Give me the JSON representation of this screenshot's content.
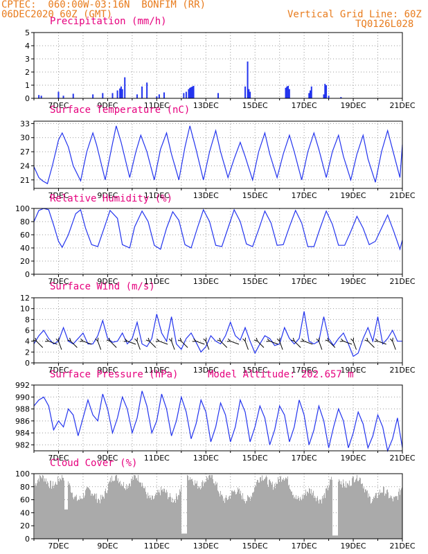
{
  "header": {
    "line1": "CPTEC:  060:00W-03:16N  BONFIM (RR)",
    "line2": "06DEC2020 60Z (GMT)",
    "right1": "Vertical Grid Line: 60Z",
    "right2": "TQ0126L028"
  },
  "x_ticks": [
    "7DEC",
    "9DEC",
    "11DEC",
    "13DEC",
    "15DEC",
    "17DEC",
    "19DEC",
    "21DEC"
  ],
  "colors": {
    "line": "#2233ee",
    "title": "#e6007e",
    "header": "#e87b1c",
    "cloud": "#aaaaaa",
    "arrow": "#000000"
  },
  "chart_data": [
    {
      "type": "bar",
      "name": "precipitation",
      "title": "Precipitation (mm/h)",
      "ylim": [
        0,
        5
      ],
      "yticks": [
        0,
        1,
        2,
        3,
        4,
        5
      ],
      "x": [
        6.2,
        6.3,
        7.0,
        7.2,
        7.6,
        8.4,
        8.8,
        9.2,
        9.4,
        9.5,
        9.55,
        9.6,
        9.7,
        10.2,
        10.4,
        10.6,
        11.0,
        11.1,
        11.3,
        12.1,
        12.2,
        12.3,
        12.35,
        12.4,
        12.45,
        12.5,
        13.5,
        14.6,
        14.7,
        14.75,
        14.8,
        16.25,
        16.3,
        16.35,
        16.4,
        17.2,
        17.25,
        17.3,
        17.8,
        17.85,
        17.9,
        18.0,
        18.5
      ],
      "values": [
        0.25,
        0.2,
        0.5,
        0.2,
        0.35,
        0.3,
        0.4,
        0.4,
        0.6,
        0.75,
        0.9,
        0.7,
        1.6,
        0.3,
        0.9,
        1.2,
        0.15,
        0.3,
        0.45,
        0.4,
        0.5,
        0.7,
        0.8,
        0.85,
        0.9,
        0.95,
        0.4,
        0.9,
        2.8,
        0.7,
        0.5,
        0.8,
        0.9,
        0.95,
        0.7,
        0.4,
        0.6,
        0.9,
        0.3,
        1.1,
        1.0,
        0.2,
        0.1
      ]
    },
    {
      "type": "line",
      "name": "temperature",
      "title": "Surface Temperature (nC)",
      "ylim": [
        19.2,
        33.5
      ],
      "yticks": [
        21,
        24,
        27,
        30,
        33
      ],
      "series": [
        {
          "x": [
            6.0,
            6.2,
            6.35,
            6.55,
            6.75,
            7.0,
            7.15,
            7.4,
            7.6,
            7.9,
            8.15,
            8.4,
            8.55,
            8.9,
            9.15,
            9.35,
            9.55,
            9.9,
            10.15,
            10.35,
            10.6,
            10.9,
            11.15,
            11.4,
            11.6,
            11.9,
            12.15,
            12.35,
            12.6,
            12.9,
            13.15,
            13.4,
            13.6,
            13.9,
            14.15,
            14.4,
            14.6,
            14.9,
            15.15,
            15.4,
            15.6,
            15.9,
            16.15,
            16.4,
            16.6,
            16.9,
            17.15,
            17.4,
            17.6,
            17.9,
            18.15,
            18.4,
            18.6,
            18.9,
            19.15,
            19.4,
            19.6,
            19.9,
            20.15,
            20.4,
            20.6,
            20.9,
            21.0
          ],
          "y": [
            23.8,
            21.5,
            20.8,
            20.2,
            24.0,
            29.5,
            31.0,
            28.0,
            24.0,
            20.8,
            27.0,
            31.0,
            28.5,
            21.0,
            27.5,
            32.5,
            29.0,
            21.5,
            27.0,
            30.5,
            27.0,
            21.0,
            27.5,
            31.0,
            26.5,
            21.0,
            28.0,
            32.5,
            27.5,
            21.0,
            27.0,
            31.5,
            27.0,
            21.5,
            25.5,
            29.0,
            26.0,
            21.0,
            27.0,
            31.0,
            26.5,
            21.5,
            26.5,
            30.5,
            27.0,
            21.0,
            27.0,
            31.0,
            27.5,
            21.5,
            27.0,
            30.5,
            26.0,
            21.0,
            26.5,
            30.5,
            25.5,
            20.5,
            27.0,
            31.5,
            27.5,
            21.5,
            28.5
          ]
        }
      ]
    },
    {
      "type": "line",
      "name": "humidity",
      "title": "Relative Humidity (%)",
      "ylim": [
        0,
        100
      ],
      "yticks": [
        0,
        20,
        40,
        60,
        80,
        100
      ],
      "series": [
        {
          "x": [
            6.0,
            6.2,
            6.4,
            6.6,
            6.8,
            7.0,
            7.15,
            7.4,
            7.7,
            7.9,
            8.1,
            8.35,
            8.6,
            8.9,
            9.1,
            9.4,
            9.6,
            9.9,
            10.1,
            10.4,
            10.65,
            10.9,
            11.15,
            11.4,
            11.65,
            11.9,
            12.15,
            12.4,
            12.65,
            12.9,
            13.15,
            13.4,
            13.65,
            13.9,
            14.15,
            14.4,
            14.65,
            14.9,
            15.15,
            15.4,
            15.65,
            15.9,
            16.15,
            16.4,
            16.65,
            16.9,
            17.15,
            17.4,
            17.65,
            17.9,
            18.15,
            18.4,
            18.65,
            18.9,
            19.15,
            19.4,
            19.65,
            19.9,
            20.15,
            20.4,
            20.65,
            20.9,
            21.0
          ],
          "y": [
            80,
            97,
            100,
            98,
            75,
            50,
            41,
            60,
            92,
            98,
            70,
            45,
            42,
            75,
            97,
            85,
            45,
            40,
            72,
            96,
            80,
            44,
            38,
            70,
            95,
            82,
            45,
            40,
            70,
            98,
            80,
            44,
            42,
            70,
            98,
            80,
            46,
            42,
            68,
            96,
            78,
            44,
            45,
            72,
            97,
            78,
            42,
            42,
            70,
            96,
            76,
            44,
            44,
            65,
            88,
            70,
            45,
            50,
            70,
            90,
            65,
            38,
            52
          ]
        }
      ]
    },
    {
      "type": "line",
      "name": "wind",
      "title": "Surface Wind (m/s)",
      "ylim": [
        0,
        12
      ],
      "yticks": [
        0,
        2,
        4,
        6,
        8,
        10,
        12
      ],
      "series": [
        {
          "x": [
            6.0,
            6.2,
            6.4,
            6.6,
            6.8,
            7.0,
            7.2,
            7.4,
            7.6,
            7.8,
            8.0,
            8.2,
            8.4,
            8.6,
            8.8,
            9.0,
            9.2,
            9.4,
            9.6,
            9.8,
            10.0,
            10.2,
            10.4,
            10.6,
            10.8,
            11.0,
            11.2,
            11.4,
            11.6,
            11.8,
            12.0,
            12.2,
            12.4,
            12.6,
            12.8,
            13.0,
            13.2,
            13.4,
            13.6,
            13.8,
            14.0,
            14.2,
            14.4,
            14.6,
            14.8,
            15.0,
            15.2,
            15.4,
            15.6,
            15.8,
            16.0,
            16.2,
            16.4,
            16.6,
            16.8,
            17.0,
            17.2,
            17.4,
            17.6,
            17.8,
            18.0,
            18.2,
            18.4,
            18.6,
            18.8,
            19.0,
            19.2,
            19.4,
            19.6,
            19.8,
            20.0,
            20.2,
            20.4,
            20.6,
            20.8,
            21.0
          ],
          "y": [
            3.5,
            5.0,
            6.0,
            4.5,
            3.5,
            4.0,
            6.5,
            4.0,
            3.5,
            4.5,
            5.5,
            3.5,
            3.5,
            5.0,
            7.8,
            4.5,
            3.8,
            4.0,
            5.5,
            3.5,
            4.5,
            7.5,
            3.5,
            3.0,
            4.5,
            9.0,
            5.5,
            4.0,
            8.5,
            3.5,
            2.5,
            4.5,
            5.5,
            3.8,
            2.0,
            3.0,
            5.0,
            4.0,
            3.5,
            5.0,
            7.5,
            5.0,
            4.2,
            6.5,
            4.0,
            1.8,
            3.5,
            5.0,
            4.5,
            3.2,
            3.5,
            6.5,
            4.5,
            3.5,
            4.5,
            9.5,
            4.0,
            3.5,
            4.0,
            8.5,
            4.5,
            3.2,
            4.5,
            5.5,
            3.5,
            1.2,
            1.8,
            4.5,
            6.5,
            4.0,
            8.5,
            3.5,
            4.5,
            6.0,
            4.0,
            4.0
          ]
        }
      ],
      "barbs": [
        6.1,
        6.6,
        7.0,
        7.5,
        8.0,
        8.6,
        9.1,
        9.8,
        10.2,
        10.7,
        11.1,
        11.6,
        12.0,
        12.6,
        13.0,
        13.6,
        14.0,
        14.6,
        15.1,
        15.6,
        16.0,
        16.6,
        17.0,
        17.6,
        18.0,
        18.6,
        19.0,
        19.6,
        20.0,
        20.6
      ]
    },
    {
      "type": "line",
      "name": "pressure",
      "title": "Surface Pressure (hPa)",
      "annotation": "Model Altitude: 202.657  m",
      "ylim": [
        981,
        992
      ],
      "yticks": [
        982,
        984,
        986,
        988,
        990,
        992
      ],
      "series": [
        {
          "x": [
            6.0,
            6.2,
            6.4,
            6.6,
            6.8,
            7.0,
            7.2,
            7.4,
            7.6,
            7.8,
            8.0,
            8.2,
            8.4,
            8.6,
            8.8,
            9.0,
            9.2,
            9.4,
            9.6,
            9.8,
            10.0,
            10.2,
            10.4,
            10.6,
            10.8,
            11.0,
            11.2,
            11.4,
            11.6,
            11.8,
            12.0,
            12.2,
            12.4,
            12.6,
            12.8,
            13.0,
            13.2,
            13.4,
            13.6,
            13.8,
            14.0,
            14.2,
            14.4,
            14.6,
            14.8,
            15.0,
            15.2,
            15.4,
            15.6,
            15.8,
            16.0,
            16.2,
            16.4,
            16.6,
            16.8,
            17.0,
            17.2,
            17.4,
            17.6,
            17.8,
            18.0,
            18.2,
            18.4,
            18.6,
            18.8,
            19.0,
            19.2,
            19.4,
            19.6,
            19.8,
            20.0,
            20.2,
            20.4,
            20.6,
            20.8,
            21.0
          ],
          "y": [
            988.5,
            989.5,
            990.0,
            988.5,
            984.5,
            986.0,
            985.0,
            988.0,
            987.0,
            983.5,
            986.5,
            989.5,
            987.0,
            986.0,
            990.5,
            988.0,
            984.0,
            986.5,
            990.0,
            988.0,
            984.0,
            986.5,
            991.0,
            988.5,
            984.0,
            986.0,
            990.5,
            988.0,
            983.5,
            986.0,
            990.0,
            987.5,
            983.0,
            985.5,
            989.5,
            987.5,
            982.5,
            985.0,
            989.0,
            987.0,
            982.5,
            985.0,
            989.5,
            987.5,
            982.5,
            985.0,
            988.5,
            986.5,
            982.0,
            984.5,
            988.5,
            987.0,
            982.5,
            985.0,
            989.5,
            987.0,
            982.0,
            984.5,
            988.5,
            986.0,
            981.5,
            985.0,
            988.0,
            986.0,
            981.5,
            984.0,
            987.5,
            985.5,
            981.5,
            983.5,
            987.0,
            985.0,
            981.0,
            983.0,
            986.5,
            981.5
          ]
        }
      ]
    },
    {
      "type": "area",
      "name": "cloud",
      "title": "Cloud Cover (%)",
      "ylim": [
        0,
        100
      ],
      "yticks": [
        0,
        20,
        40,
        60,
        80,
        100
      ]
    }
  ]
}
